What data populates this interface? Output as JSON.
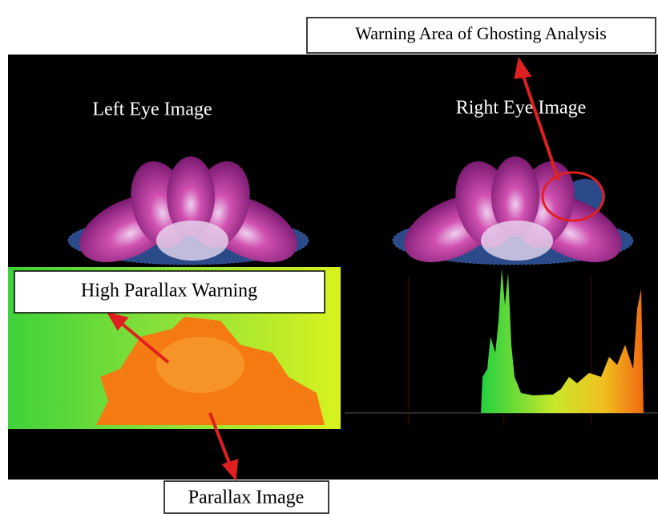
{
  "callouts": {
    "ghosting": "Warning Area of Ghosting Analysis",
    "parallax_warning": "High Parallax Warning",
    "parallax_image": "Parallax Image"
  },
  "labels": {
    "left_eye": "Left Eye Image",
    "right_eye": "Right Eye Image"
  }
}
